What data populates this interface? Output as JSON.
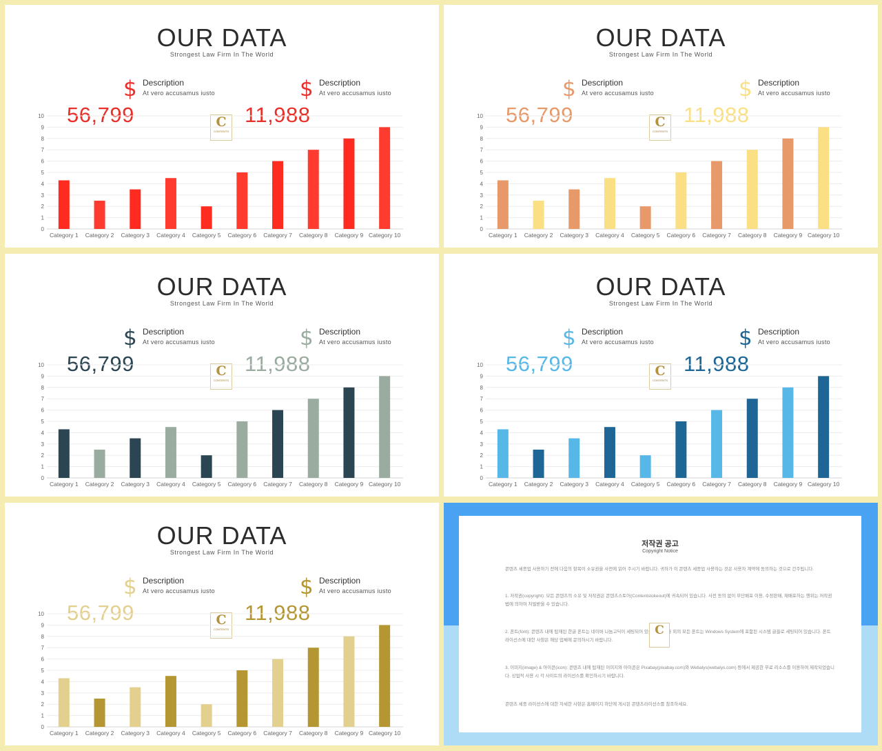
{
  "slides": [
    {
      "title": "OUR DATA",
      "subtitle": "Strongest  Law  Firm  In  The  World",
      "stats": [
        {
          "symbol": "$",
          "label": "Description",
          "sub": "At vero accusamus  iusto",
          "value": "56,799",
          "color": "#e8302a"
        },
        {
          "symbol": "$",
          "label": "Description",
          "sub": "At vero accusamus  iusto",
          "value": "11,988",
          "color": "#e8302a"
        }
      ],
      "bar_colors": [
        "#ff2b20",
        "#ff3b2f"
      ]
    },
    {
      "title": "OUR DATA",
      "subtitle": "Strongest  Law  Firm  In  The  World",
      "stats": [
        {
          "symbol": "$",
          "label": "Description",
          "sub": "At vero accusamus  iusto",
          "value": "56,799",
          "color": "#e8996a"
        },
        {
          "symbol": "$",
          "label": "Description",
          "sub": "At vero accusamus  iusto",
          "value": "11,988",
          "color": "#fadf84"
        }
      ],
      "bar_colors": [
        "#e8996a",
        "#fadf84"
      ]
    },
    {
      "title": "OUR DATA",
      "subtitle": "Strongest  Law  Firm  In  The  World",
      "stats": [
        {
          "symbol": "$",
          "label": "Description",
          "sub": "At vero accusamus  iusto",
          "value": "56,799",
          "color": "#2c4552"
        },
        {
          "symbol": "$",
          "label": "Description",
          "sub": "At vero accusamus  iusto",
          "value": "11,988",
          "color": "#9aab9f"
        }
      ],
      "bar_colors": [
        "#2c4552",
        "#9aab9f"
      ]
    },
    {
      "title": "OUR DATA",
      "subtitle": "Strongest  Law  Firm  In  The  World",
      "stats": [
        {
          "symbol": "$",
          "label": "Description",
          "sub": "At vero accusamus  iusto",
          "value": "56,799",
          "color": "#57b8e8"
        },
        {
          "symbol": "$",
          "label": "Description",
          "sub": "At vero accusamus  iusto",
          "value": "11,988",
          "color": "#1d6696"
        }
      ],
      "bar_colors": [
        "#57b8e8",
        "#1d6696"
      ]
    },
    {
      "title": "OUR DATA",
      "subtitle": "Strongest  Law  Firm  In  The  World",
      "stats": [
        {
          "symbol": "$",
          "label": "Description",
          "sub": "At vero accusamus  iusto",
          "value": "56,799",
          "color": "#e3d08f"
        },
        {
          "symbol": "$",
          "label": "Description",
          "sub": "At vero accusamus  iusto",
          "value": "11,988",
          "color": "#b49632"
        }
      ],
      "bar_colors": [
        "#e3d08f",
        "#b49632"
      ]
    }
  ],
  "chart_data": {
    "type": "bar",
    "categories": [
      "Category 1",
      "Category 2",
      "Category 3",
      "Category 4",
      "Category 5",
      "Category 6",
      "Category 7",
      "Category 8",
      "Category 9",
      "Category 10"
    ],
    "values": [
      4.3,
      2.5,
      3.5,
      4.5,
      2,
      5,
      6,
      7,
      8,
      9
    ],
    "yticks": [
      0,
      1,
      2,
      3,
      4,
      5,
      6,
      7,
      8,
      9,
      10
    ],
    "ylim": [
      0,
      10
    ],
    "grid": true,
    "legend": "none"
  },
  "logo": {
    "letter": "C",
    "word": "CONTENTS"
  },
  "notice": {
    "title": "저작권 공고",
    "subtitle": "Copyright Notice",
    "paragraphs": [
      "콘텐츠 세종업 사용하기 전에 다음의 항목이 소유권을 사전에 읽어 주시기 바랍니다. 귀하가 이 콘텐츠 세종업 사용하는 것은 사용자 계약에 동의하는 것으로 간주됩니다.",
      "1. 저작권(copyright): 모든 콘텐츠의 소유 및 저작권은 콘텐츠스토어(Contentstokeout)에 귀속되어 있습니다. 사전 동의 없이 무단배포 이용, 수정판매, 재배포하는 행위는 저작권법에 의하여 처벌받을 수 있습니다.",
      "2. 폰트(font): 콘텐츠 내에 탑재된 한글 폰트는 네이버 나눔고딕이 세팅되어 있습니다. 한글 외의 모든 폰트는 Windows System에 포함된 시스템 글꼴로 세팅되어 있습니다. 폰트 라이선스에 대한 사항은 해당 업체에 문의하시기 바랍니다.",
      "3. 이미지(image) & 아이콘(icon): 콘텐츠 내에 탑재된 이미지와 아이콘은 Pixabay(pixabay.com)와 Webalys(webalys.com) 등에서 제공한 무료 리소스를 이용하여 제작되었습니다. 상업적 사용 시 각 사이트의 라이선스를 확인하시기 바랍니다.",
      "콘텐츠 세종 라이선스에 대한 자세한 사항은 홈페이지 하단에 게시된 콘텐츠라이선스를 참조하세요."
    ]
  }
}
